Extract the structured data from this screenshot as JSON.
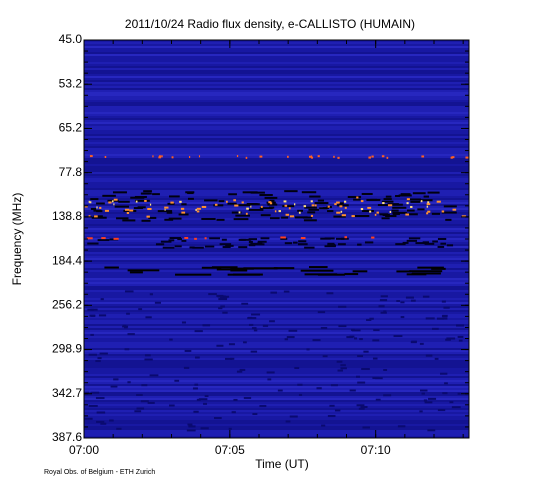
{
  "chart_data": {
    "type": "spectrogram",
    "title": "2011/10/24  Radio flux density, e-CALLISTO (HUMAIN)",
    "x_label": "Time (UT)",
    "y_label": "Frequency (MHz)",
    "footer": "Royal Obs. of Belgium - ETH Zurich",
    "xlim": [
      0,
      13.2
    ],
    "xticks": [
      {
        "value": 0,
        "label": "07:00"
      },
      {
        "value": 5,
        "label": "07:05"
      },
      {
        "value": 10,
        "label": "07:10"
      }
    ],
    "ylim": [
      45,
      387.6
    ],
    "yticks": [
      {
        "value": 45,
        "label": "45.0"
      },
      {
        "value": 53.2,
        "label": "53.2"
      },
      {
        "value": 65.2,
        "label": "65.2"
      },
      {
        "value": 77.8,
        "label": "77.8"
      },
      {
        "value": 138.8,
        "label": "138.8"
      },
      {
        "value": 184.4,
        "label": "184.4"
      },
      {
        "value": 256.2,
        "label": "256.2"
      },
      {
        "value": 298.9,
        "label": "298.9"
      },
      {
        "value": 342.7,
        "label": "342.7"
      },
      {
        "value": 387.6,
        "label": "387.6"
      }
    ]
  }
}
